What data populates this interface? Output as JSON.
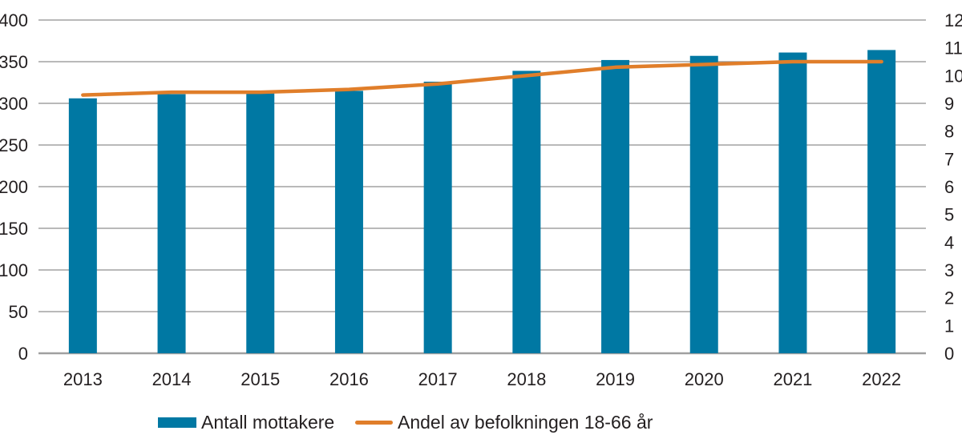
{
  "figure": {
    "background_color": "#FFFFFF",
    "text_color": "#231F20",
    "gridline_color": "#8F8F8F",
    "axisline_color": "#A0A0A0"
  },
  "chart_data": {
    "type": "combo-bar-line",
    "categories": [
      "2013",
      "2014",
      "2015",
      "2016",
      "2017",
      "2018",
      "2019",
      "2020",
      "2021",
      "2022"
    ],
    "series": [
      {
        "name": "Antall mottakere",
        "type": "bar",
        "axis": "left",
        "color": "#0078A3",
        "values": [
          306,
          311,
          312,
          315,
          326,
          339,
          352,
          357,
          361,
          364
        ]
      },
      {
        "name": "Andel av befolkningen 18-66 år",
        "type": "line",
        "axis": "right",
        "color": "#E07E2A",
        "values": [
          9.3,
          9.4,
          9.4,
          9.5,
          9.7,
          10.0,
          10.3,
          10.4,
          10.5,
          10.5
        ]
      }
    ],
    "left_axis": {
      "min": 0,
      "max": 400,
      "tick_step": 50,
      "tick_labels": [
        "0",
        "50",
        "100",
        "150",
        "200",
        "250",
        "300",
        "350",
        "400"
      ]
    },
    "right_axis": {
      "min": 0,
      "max": 12,
      "tick_step": 1,
      "tick_labels": [
        "0",
        "1",
        "2",
        "3",
        "4",
        "5",
        "6",
        "7",
        "8",
        "9",
        "10",
        "11",
        "12"
      ]
    },
    "grid": true,
    "legend_position": "bottom"
  }
}
